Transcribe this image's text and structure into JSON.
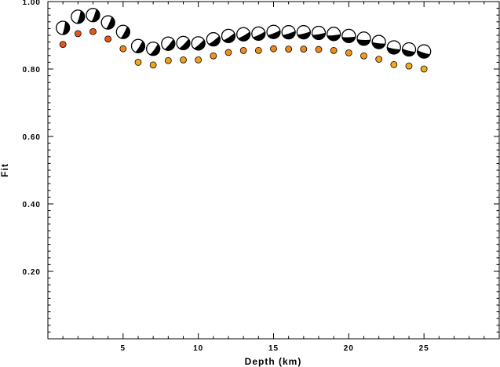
{
  "chart_data": {
    "type": "scatter",
    "xlabel": "Depth (km)",
    "ylabel": "Fit",
    "xlim": [
      0,
      30
    ],
    "ylim": [
      0,
      1.0
    ],
    "x_ticks": [
      "5",
      "10",
      "15",
      "20",
      "25"
    ],
    "y_ticks": [
      "0.20",
      "0.40",
      "0.60",
      "0.80",
      "1.00"
    ],
    "grid": false,
    "series": [
      {
        "marker": "focal-mechanism-beachball",
        "color": "#000000",
        "x": [
          1,
          2,
          3,
          4,
          5,
          6,
          7,
          8,
          9,
          10,
          11,
          12,
          13,
          14,
          15,
          16,
          17,
          18,
          19,
          20,
          21,
          22,
          23,
          24,
          25
        ],
        "y": [
          0.922,
          0.955,
          0.96,
          0.938,
          0.91,
          0.868,
          0.86,
          0.875,
          0.877,
          0.876,
          0.888,
          0.898,
          0.903,
          0.905,
          0.91,
          0.909,
          0.909,
          0.907,
          0.904,
          0.898,
          0.89,
          0.88,
          0.864,
          0.858,
          0.852
        ]
      },
      {
        "marker": "circle",
        "x": [
          1,
          2,
          3,
          4,
          5,
          6,
          7,
          8,
          9,
          10,
          11,
          12,
          13,
          14,
          15,
          16,
          17,
          18,
          19,
          20,
          21,
          22,
          23,
          24,
          25
        ],
        "y": [
          0.873,
          0.905,
          0.911,
          0.889,
          0.86,
          0.82,
          0.812,
          0.825,
          0.827,
          0.827,
          0.839,
          0.849,
          0.855,
          0.855,
          0.86,
          0.859,
          0.859,
          0.858,
          0.855,
          0.848,
          0.839,
          0.829,
          0.813,
          0.809,
          0.8
        ],
        "colors": [
          "#e8571a",
          "#e8571a",
          "#e8571a",
          "#e8571a",
          "#ef8a1a",
          "#f3a71a",
          "#f3a71a",
          "#f0a01a",
          "#f0a01a",
          "#f0a01a",
          "#ef931a",
          "#ef8f1a",
          "#ef8c1a",
          "#ef8c1a",
          "#ee881a",
          "#ee881a",
          "#ee881a",
          "#ee891a",
          "#ef8c1a",
          "#ef961a",
          "#f09c1a",
          "#f1a01a",
          "#f3a91a",
          "#f3ab1a",
          "#f4b21a"
        ]
      }
    ]
  }
}
